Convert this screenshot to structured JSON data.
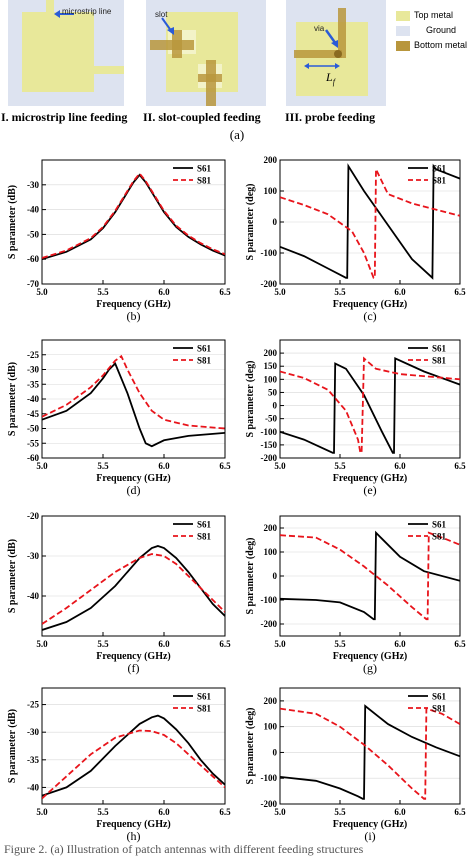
{
  "figure_a": {
    "panel_labels": [
      "I. microstrip line feeding",
      "II. slot-coupled feeding",
      "III. probe feeding"
    ],
    "annotations": {
      "microstrip": "microstrip line",
      "slot": "slot",
      "via": "via",
      "lf": "L",
      "lf_sub": "f"
    },
    "legend": [
      "Top metal",
      "Ground",
      "Bottom metal"
    ],
    "colors": {
      "top_metal": "#e8e89a",
      "ground": "#dde3f0",
      "bottom_metal": "#b8963c",
      "arrow": "#2a5bd7"
    },
    "caption_letter": "(a)"
  },
  "chart_data": [
    {
      "id": "b",
      "type": "line",
      "caption": "(b)",
      "xlabel": "Frequency (GHz)",
      "ylabel": "S parameter (dB)",
      "xlim": [
        5.0,
        6.5
      ],
      "ylim": [
        -70,
        -20
      ],
      "xticks": [
        "5.0",
        "5.5",
        "6.0",
        "6.5"
      ],
      "yticks": [
        "-30",
        "-40",
        "-50",
        "-60",
        "-70"
      ],
      "series": [
        {
          "name": "S61",
          "style": "solid",
          "x": [
            5.0,
            5.2,
            5.4,
            5.5,
            5.6,
            5.7,
            5.75,
            5.8,
            5.85,
            5.9,
            6.0,
            6.1,
            6.2,
            6.3,
            6.4,
            6.5
          ],
          "y": [
            -60,
            -57,
            -52,
            -47.5,
            -41,
            -33,
            -29,
            -26,
            -29,
            -33,
            -41,
            -47,
            -51,
            -54,
            -56.5,
            -58.5
          ]
        },
        {
          "name": "S81",
          "style": "dashed",
          "x": [
            5.0,
            5.2,
            5.4,
            5.5,
            5.6,
            5.7,
            5.75,
            5.8,
            5.85,
            5.9,
            6.0,
            6.1,
            6.2,
            6.3,
            6.4,
            6.5
          ],
          "y": [
            -59.5,
            -56.5,
            -51.5,
            -47,
            -40.5,
            -32.5,
            -28.5,
            -25.5,
            -28.5,
            -32.5,
            -40.5,
            -46.5,
            -50.5,
            -53.5,
            -56,
            -58
          ]
        }
      ]
    },
    {
      "id": "c",
      "type": "line",
      "caption": "(c)",
      "xlabel": "Frequency (GHz)",
      "ylabel": "S parameter (deg)",
      "xlim": [
        5.0,
        6.5
      ],
      "ylim": [
        -200,
        200
      ],
      "xticks": [
        "5.0",
        "5.5",
        "6.0",
        "6.5"
      ],
      "yticks": [
        "200",
        "100",
        "0",
        "-100",
        "-200"
      ],
      "series": [
        {
          "name": "S61",
          "style": "solid",
          "x": [
            5.0,
            5.2,
            5.4,
            5.55,
            5.56,
            5.57,
            5.7,
            5.9,
            6.1,
            6.27,
            6.28,
            6.3,
            6.5
          ],
          "y": [
            -80,
            -110,
            -150,
            -180,
            -180,
            180,
            100,
            -10,
            -120,
            -180,
            180,
            170,
            140
          ]
        },
        {
          "name": "S81",
          "style": "dashed",
          "x": [
            5.0,
            5.2,
            5.4,
            5.6,
            5.7,
            5.78,
            5.79,
            5.8,
            5.9,
            6.1,
            6.3,
            6.5
          ],
          "y": [
            80,
            55,
            25,
            -30,
            -100,
            -180,
            -180,
            170,
            90,
            60,
            40,
            20
          ]
        }
      ]
    },
    {
      "id": "d",
      "type": "line",
      "caption": "(d)",
      "xlabel": "Frequency (GHz)",
      "ylabel": "S parameter (dB)",
      "xlim": [
        5.0,
        6.5
      ],
      "ylim": [
        -60,
        -20
      ],
      "xticks": [
        "5.0",
        "5.5",
        "6.0",
        "6.5"
      ],
      "yticks": [
        "-25",
        "-30",
        "-35",
        "-40",
        "-45",
        "-50",
        "-55",
        "-60"
      ],
      "series": [
        {
          "name": "S61",
          "style": "solid",
          "x": [
            5.0,
            5.2,
            5.4,
            5.5,
            5.55,
            5.6,
            5.7,
            5.8,
            5.85,
            5.9,
            6.0,
            6.2,
            6.5
          ],
          "y": [
            -47,
            -44,
            -38,
            -33,
            -30,
            -28,
            -38,
            -50,
            -55,
            -56,
            -54,
            -52.5,
            -51.5
          ]
        },
        {
          "name": "S81",
          "style": "dashed",
          "x": [
            5.0,
            5.2,
            5.4,
            5.5,
            5.6,
            5.65,
            5.7,
            5.8,
            5.9,
            6.0,
            6.2,
            6.5
          ],
          "y": [
            -46,
            -42,
            -36,
            -32,
            -27,
            -25.5,
            -30,
            -38,
            -44,
            -47,
            -49,
            -50
          ]
        }
      ]
    },
    {
      "id": "e",
      "type": "line",
      "caption": "(e)",
      "xlabel": "Frequency (GHz)",
      "ylabel": "S parameter (deg)",
      "xlim": [
        5.0,
        6.5
      ],
      "ylim": [
        -200,
        250
      ],
      "xticks": [
        "5.0",
        "5.5",
        "6.0",
        "6.5"
      ],
      "yticks": [
        "200",
        "150",
        "100",
        "50",
        "0",
        "-50",
        "-100",
        "-150",
        "-200"
      ],
      "series": [
        {
          "name": "S61",
          "style": "solid",
          "x": [
            5.0,
            5.2,
            5.44,
            5.45,
            5.46,
            5.55,
            5.7,
            5.85,
            5.94,
            5.95,
            5.96,
            6.2,
            6.5
          ],
          "y": [
            -100,
            -130,
            -180,
            -180,
            160,
            140,
            40,
            -100,
            -180,
            -180,
            180,
            130,
            80
          ]
        },
        {
          "name": "S81",
          "style": "dashed",
          "x": [
            5.0,
            5.2,
            5.4,
            5.55,
            5.65,
            5.67,
            5.68,
            5.7,
            5.8,
            6.0,
            6.5
          ],
          "y": [
            130,
            105,
            60,
            -20,
            -130,
            -180,
            -180,
            180,
            140,
            120,
            100
          ]
        }
      ]
    },
    {
      "id": "f",
      "type": "line",
      "caption": "(f)",
      "xlabel": "Frequency (GHz)",
      "ylabel": "S parameter (dB)",
      "xlim": [
        5.0,
        6.5
      ],
      "ylim": [
        -50,
        -20
      ],
      "xticks": [
        "5.0",
        "5.5",
        "6.0",
        "6.5"
      ],
      "yticks": [
        "-20",
        "-30",
        "-40"
      ],
      "series": [
        {
          "name": "S61",
          "style": "solid",
          "x": [
            5.0,
            5.2,
            5.4,
            5.6,
            5.8,
            5.9,
            5.95,
            6.0,
            6.1,
            6.2,
            6.3,
            6.4,
            6.5
          ],
          "y": [
            -48.5,
            -46.5,
            -43,
            -37.5,
            -30.5,
            -28,
            -27.5,
            -28,
            -30.5,
            -34,
            -38,
            -42,
            -45
          ]
        },
        {
          "name": "S81",
          "style": "dashed",
          "x": [
            5.0,
            5.2,
            5.4,
            5.6,
            5.8,
            5.9,
            6.0,
            6.1,
            6.2,
            6.3,
            6.4,
            6.5
          ],
          "y": [
            -47,
            -43,
            -38.5,
            -34,
            -30.5,
            -29.5,
            -30,
            -32,
            -35,
            -38,
            -41,
            -44
          ]
        }
      ]
    },
    {
      "id": "g",
      "type": "line",
      "caption": "(g)",
      "xlabel": "Frequency (GHz)",
      "ylabel": "S parameter (deg)",
      "xlim": [
        5.0,
        6.5
      ],
      "ylim": [
        -250,
        250
      ],
      "xticks": [
        "5.0",
        "5.5",
        "6.0",
        "6.5"
      ],
      "yticks": [
        "200",
        "100",
        "0",
        "-100",
        "-200"
      ],
      "series": [
        {
          "name": "S61",
          "style": "solid",
          "x": [
            5.0,
            5.3,
            5.5,
            5.7,
            5.78,
            5.79,
            5.8,
            6.0,
            6.2,
            6.5
          ],
          "y": [
            -95,
            -100,
            -110,
            -150,
            -180,
            -180,
            180,
            80,
            20,
            -20
          ]
        },
        {
          "name": "S81",
          "style": "dashed",
          "x": [
            5.0,
            5.3,
            5.5,
            5.7,
            5.9,
            6.1,
            6.22,
            6.23,
            6.24,
            6.35,
            6.5
          ],
          "y": [
            170,
            160,
            110,
            40,
            -40,
            -130,
            -180,
            -180,
            180,
            160,
            130
          ]
        }
      ]
    },
    {
      "id": "h",
      "type": "line",
      "caption": "(h)",
      "xlabel": "Frequency (GHz)",
      "ylabel": "S parameter (dB)",
      "xlim": [
        5.0,
        6.5
      ],
      "ylim": [
        -43,
        -22
      ],
      "xticks": [
        "5.0",
        "5.5",
        "6.0",
        "6.5"
      ],
      "yticks": [
        "-25",
        "-30",
        "-35",
        "-40"
      ],
      "series": [
        {
          "name": "S61",
          "style": "solid",
          "x": [
            5.0,
            5.2,
            5.4,
            5.6,
            5.8,
            5.9,
            5.95,
            6.0,
            6.1,
            6.2,
            6.3,
            6.4,
            6.5
          ],
          "y": [
            -41.5,
            -40,
            -37,
            -32.5,
            -28.5,
            -27.3,
            -27,
            -27.5,
            -29.5,
            -32,
            -35,
            -37.5,
            -39.5
          ]
        },
        {
          "name": "S81",
          "style": "dashed",
          "x": [
            5.0,
            5.2,
            5.4,
            5.6,
            5.8,
            5.9,
            6.0,
            6.1,
            6.2,
            6.3,
            6.4,
            6.5
          ],
          "y": [
            -42,
            -38,
            -34,
            -31,
            -29.7,
            -29.8,
            -30.5,
            -32,
            -34,
            -36,
            -38,
            -40
          ]
        }
      ]
    },
    {
      "id": "i",
      "type": "line",
      "caption": "(i)",
      "xlabel": "Frequency (GHz)",
      "ylabel": "S parameter (deg)",
      "xlim": [
        5.0,
        6.5
      ],
      "ylim": [
        -200,
        250
      ],
      "xticks": [
        "5.0",
        "5.5",
        "6.0",
        "6.5"
      ],
      "yticks": [
        "200",
        "100",
        "0",
        "-100",
        "-200"
      ],
      "series": [
        {
          "name": "S61",
          "style": "solid",
          "x": [
            5.0,
            5.3,
            5.5,
            5.65,
            5.69,
            5.7,
            5.71,
            5.9,
            6.1,
            6.3,
            6.5
          ],
          "y": [
            -95,
            -110,
            -140,
            -170,
            -180,
            -180,
            180,
            110,
            60,
            20,
            -15
          ]
        },
        {
          "name": "S81",
          "style": "dashed",
          "x": [
            5.0,
            5.3,
            5.5,
            5.7,
            5.9,
            6.1,
            6.2,
            6.21,
            6.22,
            6.35,
            6.5
          ],
          "y": [
            170,
            150,
            100,
            30,
            -50,
            -140,
            -180,
            -180,
            170,
            150,
            110
          ]
        }
      ]
    }
  ],
  "footer": "Figure 2. (a) Illustration of patch antennas with different feeding structures"
}
